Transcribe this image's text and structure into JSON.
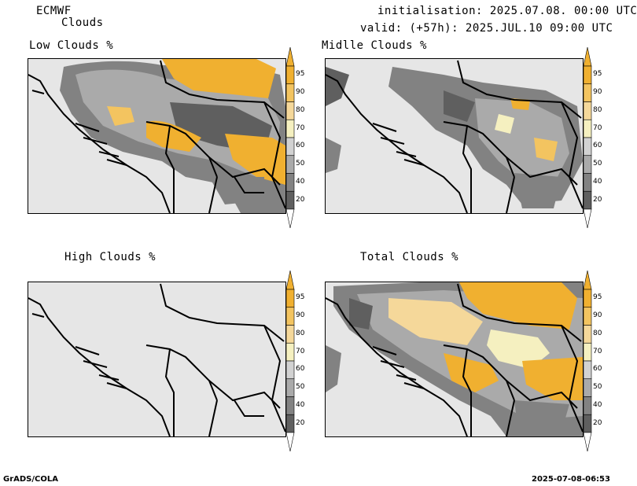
{
  "header": {
    "model": "ECMWF",
    "product": "Clouds",
    "initialisation": "initialisation: 2025.07.08. 00:00 UTC",
    "valid": "valid: (+57h): 2025.JUL.10 09:00 UTC"
  },
  "panels": [
    {
      "id": "low",
      "title": "Low Clouds %"
    },
    {
      "id": "middle",
      "title": "Midlle Clouds %"
    },
    {
      "id": "high",
      "title": "High Clouds %"
    },
    {
      "id": "total",
      "title": "Total Clouds %"
    }
  ],
  "colorbar": {
    "levels": [
      "95",
      "90",
      "80",
      "70",
      "60",
      "50",
      "40",
      "20"
    ],
    "colors": [
      "#f0b030",
      "#f3c460",
      "#f5d89a",
      "#f5f0c0",
      "#d2d2d2",
      "#aaaaaa",
      "#828282",
      "#5f5f5f"
    ],
    "under_color": "#ffffff"
  },
  "footer": {
    "left": "GrADS/COLA",
    "right": "2025-07-08-06:53"
  }
}
